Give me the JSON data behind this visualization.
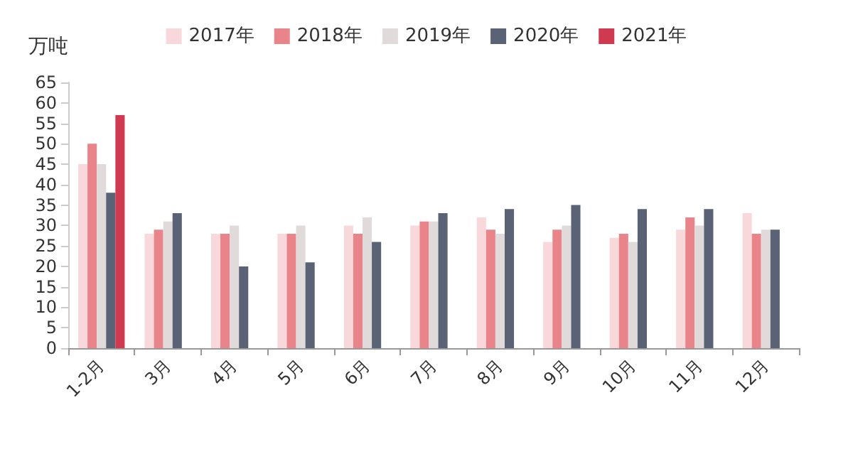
{
  "chart_data": {
    "type": "bar",
    "ylabel": "万吨",
    "categories": [
      "1-2月",
      "3月",
      "4月",
      "5月",
      "6月",
      "7月",
      "8月",
      "9月",
      "10月",
      "11月",
      "12月"
    ],
    "series": [
      {
        "name": "2017年",
        "color": "#f8d8db",
        "values": [
          45,
          28,
          28,
          28,
          30,
          30,
          32,
          26,
          27,
          29,
          33
        ]
      },
      {
        "name": "2018年",
        "color": "#e8848a",
        "values": [
          50,
          29,
          28,
          28,
          28,
          31,
          29,
          29,
          28,
          32,
          28
        ]
      },
      {
        "name": "2019年",
        "color": "#e0dadb",
        "values": [
          45,
          31,
          30,
          30,
          32,
          31,
          28,
          30,
          26,
          30,
          29
        ]
      },
      {
        "name": "2020年",
        "color": "#5a6275",
        "values": [
          38,
          33,
          20,
          21,
          26,
          33,
          34,
          35,
          34,
          34,
          29
        ]
      },
      {
        "name": "2021年",
        "color": "#d03a50",
        "values": [
          57,
          null,
          null,
          null,
          null,
          null,
          null,
          null,
          null,
          null,
          null
        ]
      }
    ],
    "ylim": [
      0,
      65
    ],
    "yticks": [
      0,
      5,
      10,
      15,
      20,
      25,
      30,
      35,
      40,
      45,
      50,
      55,
      60,
      65
    ],
    "grid": false,
    "legend": "top"
  }
}
